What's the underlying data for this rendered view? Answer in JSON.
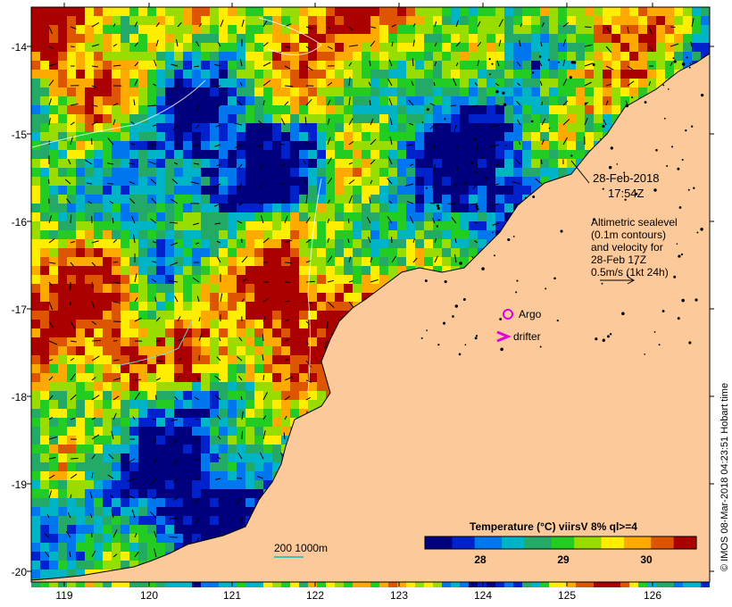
{
  "map": {
    "land_color": "#fcc99a",
    "ocean_palette": [
      "#00007f",
      "#0022cc",
      "#0077ee",
      "#00b4c8",
      "#22aa66",
      "#22cc22",
      "#99dd00",
      "#ffee00",
      "#ffaa00",
      "#dd5500",
      "#aa0000"
    ]
  },
  "axes": {
    "y_ticks": [
      "-14",
      "-15",
      "-16",
      "-17",
      "-18",
      "-19",
      "-20"
    ],
    "x_ticks": [
      "119",
      "120",
      "121",
      "122",
      "123",
      "124",
      "125",
      "126"
    ]
  },
  "annotations": {
    "date_line1": "28-Feb-2018",
    "date_line2": "17:54Z",
    "alt_line1": "Altimetric sealevel",
    "alt_line2": "(0.1m contours)",
    "alt_line3": "and velocity for",
    "alt_line4": "28-Feb 17Z",
    "alt_line5": "0.5m/s (1kt 24h)",
    "argo_label": "Argo",
    "drifter_label": "drifter",
    "depth_label": "200  1000m"
  },
  "colorbar": {
    "title": "Temperature (°C) viirsV 8% ql>=4",
    "ticks": [
      "28",
      "29",
      "30"
    ],
    "colors": [
      "#00007f",
      "#0022cc",
      "#0077ee",
      "#00b4c8",
      "#22aa66",
      "#22cc22",
      "#99dd00",
      "#ffee00",
      "#ffaa00",
      "#dd5500",
      "#aa0000"
    ]
  },
  "footer": {
    "right_note": "© IMOS 08-Mar-2018 04:23:51 Hobart time"
  }
}
